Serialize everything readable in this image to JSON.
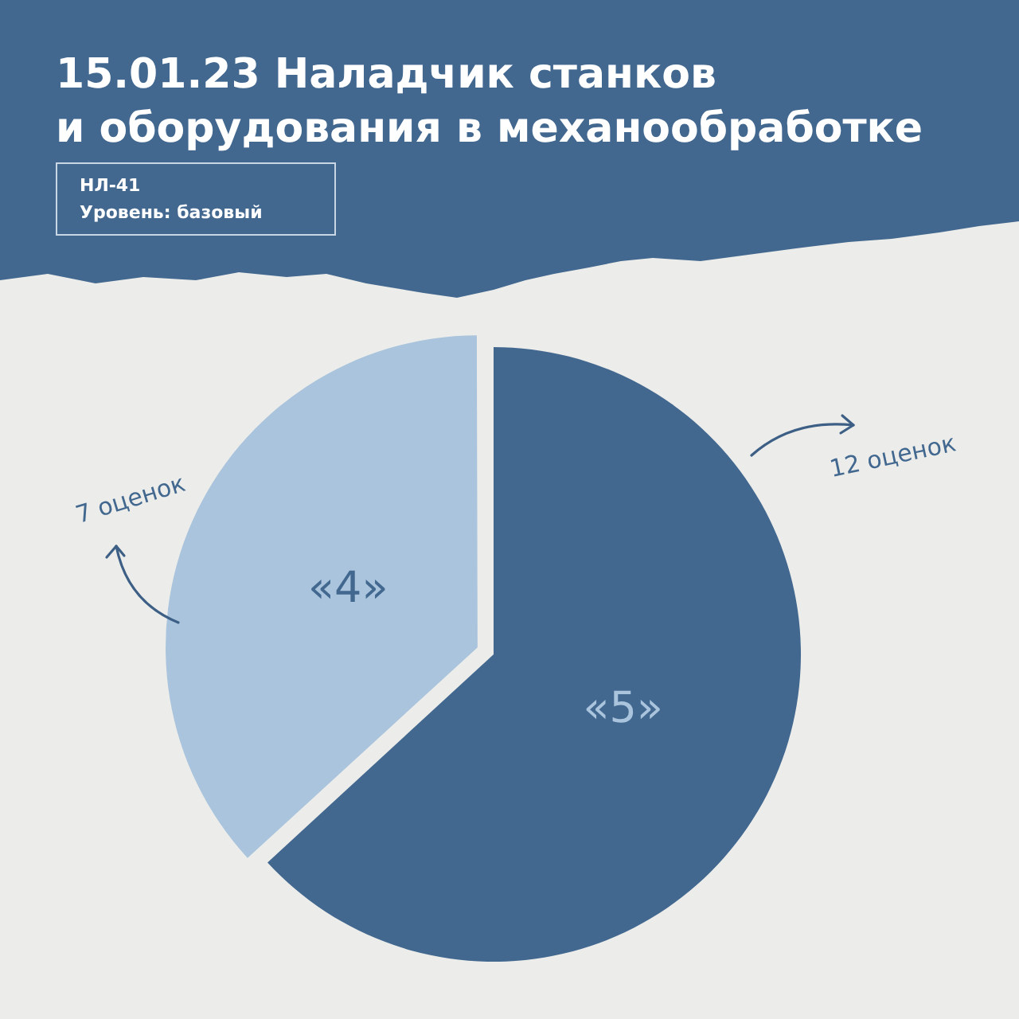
{
  "chart_data": {
    "type": "pie",
    "title": "15.01.23 Наладчик станков\nи оборудования в механообработке",
    "subtitle": "НЛ-41\nУровень: базовый",
    "categories": [
      "«5»",
      "«4»"
    ],
    "values": [
      12,
      7
    ],
    "colors": [
      "#436890",
      "#a9c4dc"
    ],
    "value_labels": [
      "12 оценок",
      "7 оценок"
    ],
    "legend": false
  }
}
